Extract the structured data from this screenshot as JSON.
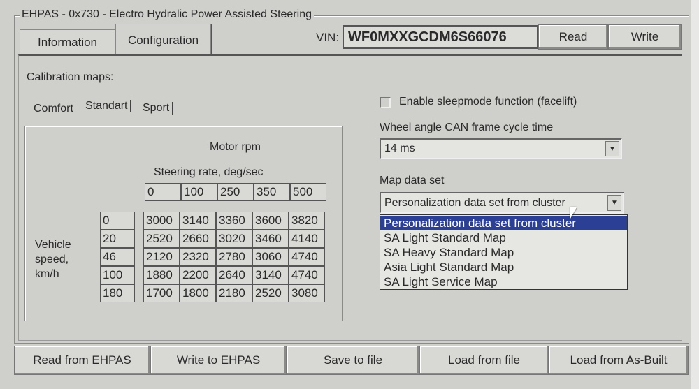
{
  "window": {
    "group_title": "EHPAS - 0x730 - Electro Hydralic Power Assisted Steering"
  },
  "tabs": [
    {
      "label": "Information"
    },
    {
      "label": "Configuration",
      "active": true
    }
  ],
  "vin": {
    "label": "VIN:",
    "value": "WF0MXXGCDM6S66076"
  },
  "top_buttons": {
    "read": "Read",
    "write": "Write"
  },
  "calibration": {
    "label": "Calibration maps:",
    "subtabs": [
      "Comfort",
      "Standart",
      "Sport"
    ],
    "active_subtab": "Standart",
    "table_title": "Motor rpm",
    "column_header_title": "Steering rate, deg/sec",
    "columns": [
      "0",
      "100",
      "250",
      "350",
      "500"
    ],
    "row_header_title": "Vehicle speed, km/h",
    "rows": [
      "0",
      "20",
      "46",
      "100",
      "180"
    ],
    "values": [
      [
        "3000",
        "3140",
        "3360",
        "3600",
        "3820"
      ],
      [
        "2520",
        "2660",
        "3020",
        "3460",
        "4140"
      ],
      [
        "2120",
        "2320",
        "2780",
        "3060",
        "4740"
      ],
      [
        "1880",
        "2200",
        "2640",
        "3140",
        "4740"
      ],
      [
        "1700",
        "1800",
        "2180",
        "2520",
        "3080"
      ]
    ]
  },
  "settings": {
    "sleepmode_label": "Enable sleepmode function (facelift)",
    "sleepmode_checked": false,
    "cycle_label": "Wheel angle CAN frame cycle time",
    "cycle_value": "14 ms",
    "mapset_label": "Map data set",
    "mapset_value": "Personalization data set from cluster",
    "mapset_options": [
      "Personalization data set from cluster",
      "SA Light Standard Map",
      "SA Heavy Standard Map",
      "Asia Light Standard Map",
      "SA Light Service Map"
    ],
    "highlight_color": "#2b3f95"
  },
  "bottom_buttons": [
    "Read from EHPAS",
    "Write to EHPAS",
    "Save to file",
    "Load from file",
    "Load from As-Built"
  ]
}
